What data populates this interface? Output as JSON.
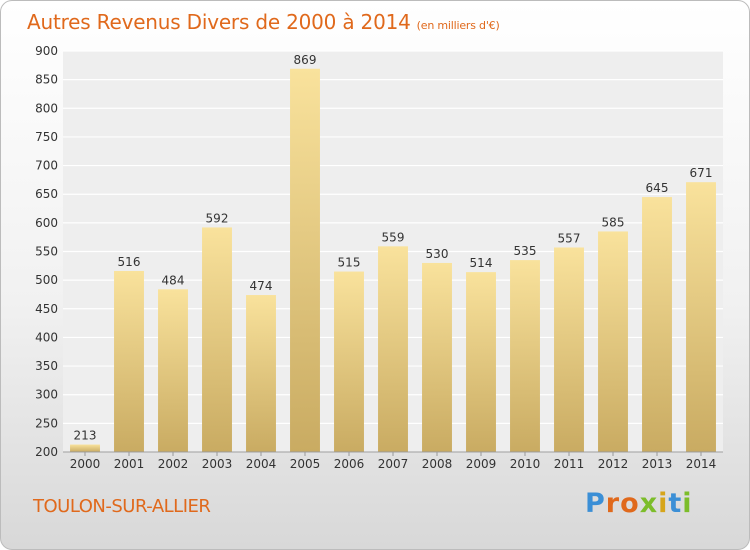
{
  "chart_data": {
    "type": "bar",
    "title": "Autres Revenus Divers de 2000 à 2014",
    "subtitle": "(en milliers d'€)",
    "categories": [
      "2000",
      "2001",
      "2002",
      "2003",
      "2004",
      "2005",
      "2006",
      "2007",
      "2008",
      "2009",
      "2010",
      "2011",
      "2012",
      "2013",
      "2014"
    ],
    "values": [
      213,
      516,
      484,
      592,
      474,
      869,
      515,
      559,
      530,
      514,
      535,
      557,
      585,
      645,
      671
    ],
    "ylim": [
      200,
      900
    ],
    "yticks": [
      200,
      250,
      300,
      350,
      400,
      450,
      500,
      550,
      600,
      650,
      700,
      750,
      800,
      850,
      900
    ],
    "grid": true,
    "bar_color_top": "#f9e29c",
    "bar_color_bottom": "#c9ab62"
  },
  "footer": {
    "commune": "TOULON-SUR-ALLIER",
    "logo": {
      "p": "P",
      "r": "r",
      "o": "o",
      "x": "x",
      "i1": "i",
      "t": "t",
      "i2": "i"
    }
  }
}
